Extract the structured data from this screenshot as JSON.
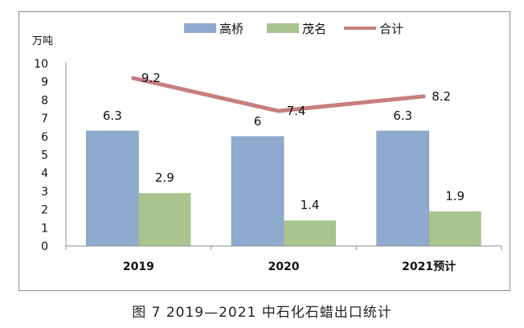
{
  "chart_data": {
    "type": "bar",
    "categories": [
      "2019",
      "2020",
      "2021预计"
    ],
    "series": [
      {
        "name": "高桥",
        "kind": "bar",
        "color": "#8eaacf",
        "values": [
          6.3,
          6,
          6.3
        ],
        "labels": [
          "6.3",
          "6",
          "6.3"
        ]
      },
      {
        "name": "茂名",
        "kind": "bar",
        "color": "#a9c48e",
        "values": [
          2.9,
          1.4,
          1.9
        ],
        "labels": [
          "2.9",
          "1.4",
          "1.9"
        ]
      },
      {
        "name": "合计",
        "kind": "line",
        "color": "#c77e7e",
        "values": [
          9.2,
          7.4,
          8.2
        ],
        "labels": [
          "9.2",
          "7.4",
          "8.2"
        ]
      }
    ],
    "y_unit": "万吨",
    "ylim": [
      0,
      10
    ],
    "yticks": [
      "0",
      "1",
      "2",
      "3",
      "4",
      "5",
      "6",
      "7",
      "8",
      "9",
      "10"
    ],
    "legend_position": "top",
    "grid": false
  },
  "caption": "图 7  2019—2021 中石化石蜡出口统计"
}
